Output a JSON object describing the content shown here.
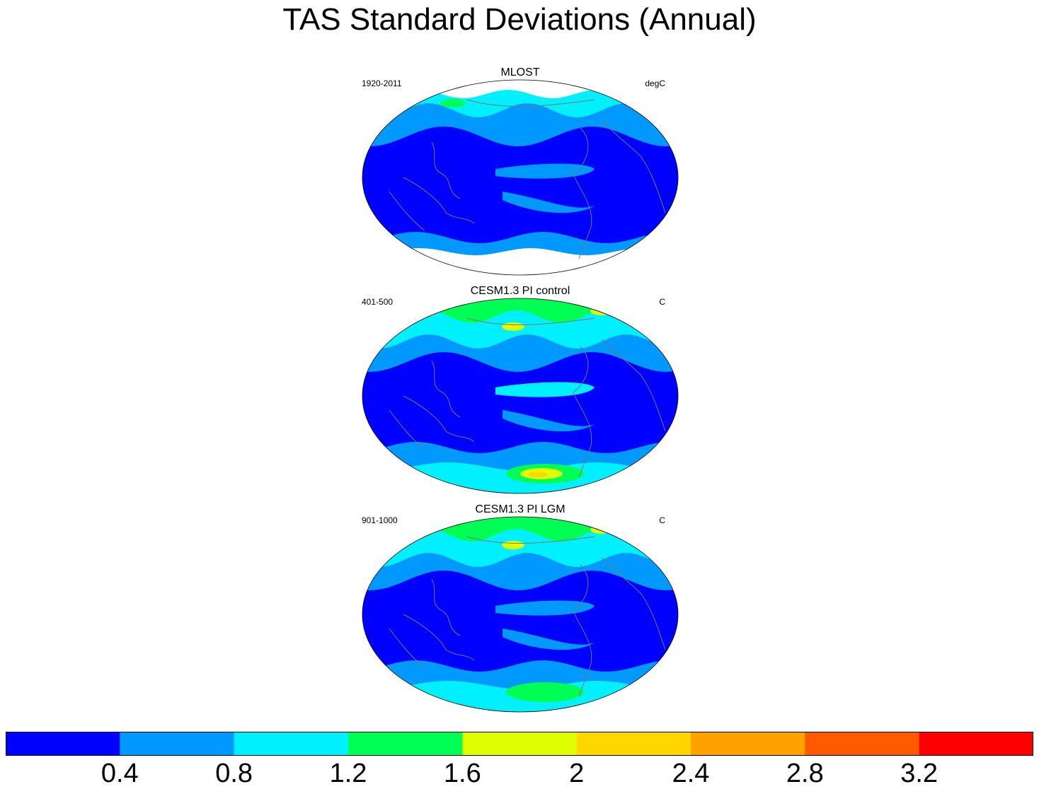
{
  "title": "TAS Standard Deviations (Annual)",
  "colors": {
    "land_outline": "#777777",
    "missing": "#ffffff"
  },
  "chart_data": {
    "type": "heatmap",
    "title": "TAS Standard Deviations (Annual)",
    "projection": "Winkel tripel (global)",
    "colorbar": {
      "levels": [
        0.4,
        0.8,
        1.2,
        1.6,
        2,
        2.4,
        2.8,
        3.2
      ],
      "tick_labels": [
        "0.4",
        "0.8",
        "1.2",
        "1.6",
        "2",
        "2.4",
        "2.8",
        "3.2"
      ],
      "colors": [
        "#0000ff",
        "#0099ff",
        "#00f0ff",
        "#00ff55",
        "#ddff00",
        "#ffd700",
        "#ffa200",
        "#ff5a00",
        "#ff0000"
      ]
    },
    "panels": [
      {
        "title": "MLOST",
        "period": "1920-2011",
        "units": "degC",
        "has_missing_polar": true,
        "ranges": {
          "tropics": "0-0.4",
          "eq_pacific_band": "0.4-0.8",
          "mid_latitudes": "0.4-0.8",
          "high_north": "0.8-1.2",
          "max_patch": "1.2-1.6"
        }
      },
      {
        "title": "CESM1.3 PI control",
        "period": "401-500",
        "units": "C",
        "has_missing_polar": false,
        "ranges": {
          "tropics": "0-0.4",
          "eq_pacific_band": "0.8-1.2",
          "mid_latitudes": "0.4-0.8",
          "high_north": "0.8-1.6",
          "max_patch": "1.6-2.4"
        }
      },
      {
        "title": "CESM1.3 PI LGM",
        "period": "901-1000",
        "units": "C",
        "has_missing_polar": false,
        "ranges": {
          "tropics": "0-0.4",
          "eq_pacific_band": "0.4-0.8",
          "mid_latitudes": "0.4-0.8",
          "high_north": "0.8-1.6",
          "max_patch": "1.6-2.0"
        }
      }
    ]
  }
}
